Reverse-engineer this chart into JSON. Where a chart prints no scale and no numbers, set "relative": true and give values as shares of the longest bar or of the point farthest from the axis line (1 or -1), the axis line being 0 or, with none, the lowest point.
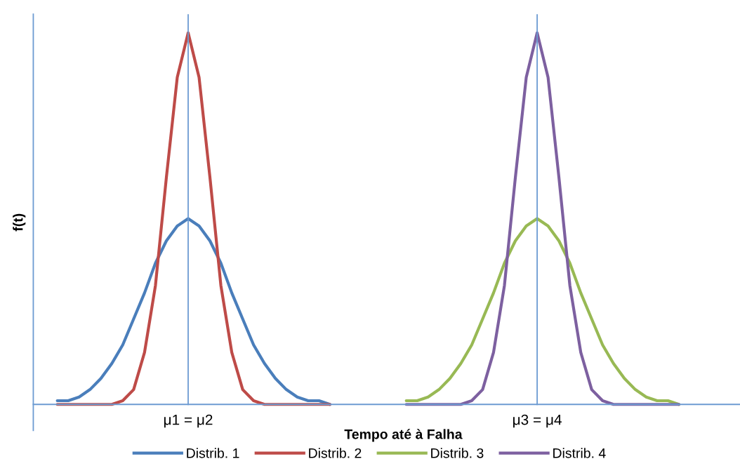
{
  "chart_data": {
    "type": "line",
    "relative": true,
    "xlabel": "Tempo até à Falha",
    "ylabel": "f(t)",
    "categories": [
      null,
      null,
      null,
      null,
      null,
      null,
      null,
      null,
      null,
      null,
      null,
      null,
      null,
      "μ1 = μ2",
      null,
      null,
      null,
      null,
      null,
      null,
      null,
      null,
      null,
      null,
      null,
      null,
      null,
      null,
      null,
      null,
      null,
      null,
      null,
      null,
      null,
      null,
      null,
      null,
      null,
      null,
      null,
      null,
      null,
      null,
      null,
      "μ3 = μ4",
      null,
      null,
      null,
      null,
      null,
      null,
      null,
      null,
      null,
      null,
      null,
      null,
      null,
      null
    ],
    "series": [
      {
        "name": "Distrib. 1",
        "color": "#4a7ebb",
        "values": [
          null,
          0.01,
          0.01,
          0.02,
          0.04,
          0.07,
          0.11,
          0.16,
          0.23,
          0.3,
          0.38,
          0.44,
          0.48,
          0.5,
          0.48,
          0.44,
          0.38,
          0.3,
          0.23,
          0.16,
          0.11,
          0.07,
          0.04,
          0.02,
          0.01,
          0.01,
          0,
          null,
          null,
          null,
          null,
          null,
          null,
          null,
          null,
          null,
          null,
          null,
          null,
          null,
          null,
          null,
          null,
          null,
          null,
          null,
          null,
          null,
          null,
          null,
          null,
          null,
          null,
          null,
          null,
          null,
          null,
          null,
          null,
          null
        ]
      },
      {
        "name": "Distrib. 2",
        "color": "#be4b48",
        "values": [
          null,
          0,
          0,
          0,
          0,
          0,
          0,
          0.01,
          0.04,
          0.14,
          0.32,
          0.61,
          0.88,
          1,
          0.88,
          0.61,
          0.32,
          0.14,
          0.04,
          0.01,
          0,
          0,
          0,
          0,
          0,
          0,
          0,
          null,
          null,
          null,
          null,
          null,
          null,
          null,
          null,
          null,
          null,
          null,
          null,
          null,
          null,
          null,
          null,
          null,
          null,
          null,
          null,
          null,
          null,
          null,
          null,
          null,
          null,
          null,
          null,
          null,
          null,
          null,
          null,
          null
        ]
      },
      {
        "name": "Distrib. 3",
        "color": "#98b954",
        "values": [
          null,
          null,
          null,
          null,
          null,
          null,
          null,
          null,
          null,
          null,
          null,
          null,
          null,
          null,
          null,
          null,
          null,
          null,
          null,
          null,
          null,
          null,
          null,
          null,
          null,
          null,
          null,
          null,
          null,
          null,
          null,
          null,
          null,
          0.01,
          0.01,
          0.02,
          0.04,
          0.07,
          0.11,
          0.16,
          0.23,
          0.3,
          0.38,
          0.44,
          0.48,
          0.5,
          0.48,
          0.44,
          0.38,
          0.3,
          0.23,
          0.16,
          0.11,
          0.07,
          0.04,
          0.02,
          0.01,
          0.01,
          0,
          null
        ]
      },
      {
        "name": "Distrib. 4",
        "color": "#7d60a0",
        "values": [
          null,
          null,
          null,
          null,
          null,
          null,
          null,
          null,
          null,
          null,
          null,
          null,
          null,
          null,
          null,
          null,
          null,
          null,
          null,
          null,
          null,
          null,
          null,
          null,
          null,
          null,
          null,
          null,
          null,
          null,
          null,
          null,
          null,
          0,
          0,
          0,
          0,
          0,
          0,
          0.01,
          0.04,
          0.14,
          0.32,
          0.61,
          0.88,
          1,
          0.88,
          0.61,
          0.32,
          0.14,
          0.04,
          0.01,
          0,
          0,
          0,
          0,
          0,
          0,
          0,
          null
        ]
      }
    ],
    "ref_lines": [
      {
        "axis": "x",
        "value": "μ1 = μ2",
        "color": "#6c9bd2"
      },
      {
        "axis": "x",
        "value": "μ3 = μ4",
        "color": "#6c9bd2"
      }
    ],
    "legend": "bottom",
    "grid": false,
    "marker": "none",
    "line_style": "solid"
  }
}
